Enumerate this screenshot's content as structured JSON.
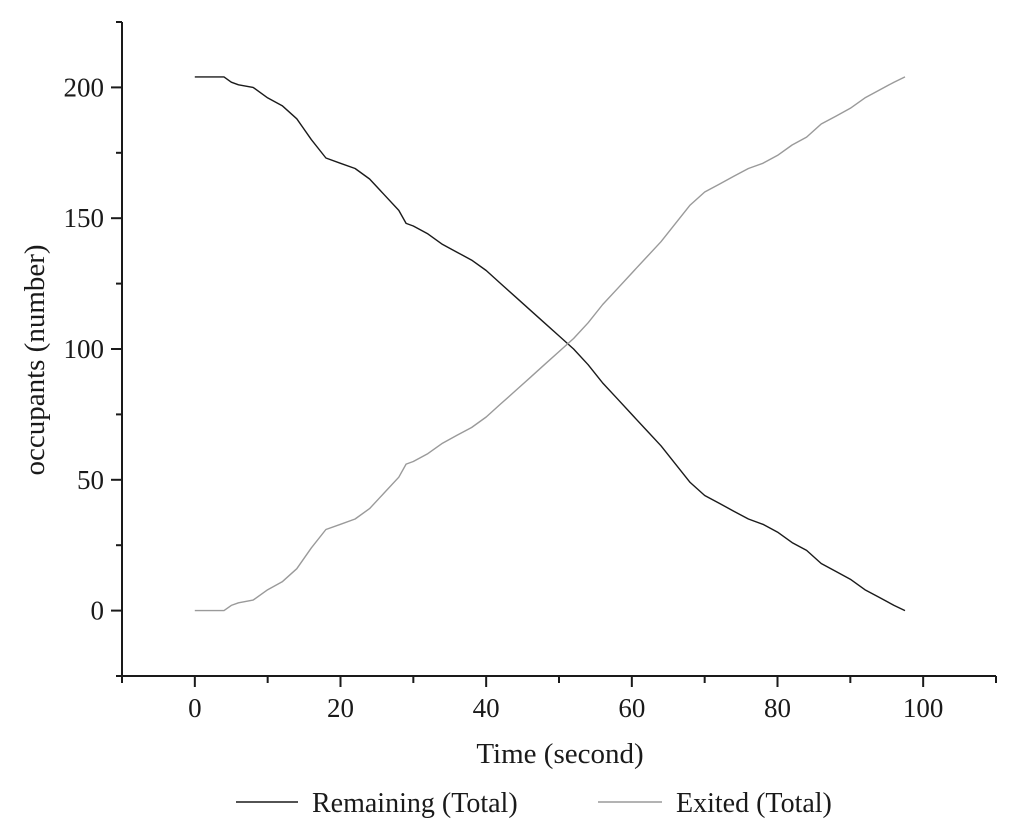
{
  "chart_data": {
    "type": "line",
    "title": "",
    "xlabel": "Time (second)",
    "ylabel": "occupants (number)",
    "xlim": [
      -10,
      110
    ],
    "ylim": [
      -25,
      225
    ],
    "x_ticks": [
      0,
      20,
      40,
      60,
      80,
      100
    ],
    "y_ticks": [
      0,
      50,
      100,
      150,
      200
    ],
    "x_minor_step": 10,
    "y_minor_step": 25,
    "grid": false,
    "legend_position": "bottom-center",
    "series": [
      {
        "name": "Remaining (Total)",
        "color": "#1a1a1a",
        "x": [
          0,
          2,
          4,
          5,
          6,
          8,
          10,
          12,
          14,
          16,
          18,
          20,
          22,
          24,
          26,
          28,
          29,
          30,
          32,
          34,
          36,
          38,
          40,
          42,
          44,
          46,
          48,
          50,
          52,
          54,
          56,
          58,
          60,
          62,
          64,
          66,
          68,
          70,
          72,
          74,
          76,
          78,
          80,
          82,
          84,
          86,
          88,
          90,
          92,
          94,
          96,
          97.5
        ],
        "y": [
          204,
          204,
          204,
          202,
          201,
          200,
          196,
          193,
          188,
          180,
          173,
          171,
          169,
          165,
          159,
          153,
          148,
          147,
          144,
          140,
          137,
          134,
          130,
          125,
          120,
          115,
          110,
          105,
          100,
          94,
          87,
          81,
          75,
          69,
          63,
          56,
          49,
          44,
          41,
          38,
          35,
          33,
          30,
          26,
          23,
          18,
          15,
          12,
          8,
          5,
          2,
          0
        ]
      },
      {
        "name": "Exited (Total)",
        "color": "#9a9a9a",
        "x": [
          0,
          2,
          4,
          5,
          6,
          8,
          10,
          12,
          14,
          16,
          18,
          20,
          22,
          24,
          26,
          28,
          29,
          30,
          32,
          34,
          36,
          38,
          40,
          42,
          44,
          46,
          48,
          50,
          52,
          54,
          56,
          58,
          60,
          62,
          64,
          66,
          68,
          70,
          72,
          74,
          76,
          78,
          80,
          82,
          84,
          86,
          88,
          90,
          92,
          94,
          96,
          97.5
        ],
        "y": [
          0,
          0,
          0,
          2,
          3,
          4,
          8,
          11,
          16,
          24,
          31,
          33,
          35,
          39,
          45,
          51,
          56,
          57,
          60,
          64,
          67,
          70,
          74,
          79,
          84,
          89,
          94,
          99,
          104,
          110,
          117,
          123,
          129,
          135,
          141,
          148,
          155,
          160,
          163,
          166,
          169,
          171,
          174,
          178,
          181,
          186,
          189,
          192,
          196,
          199,
          202,
          204
        ]
      }
    ]
  }
}
